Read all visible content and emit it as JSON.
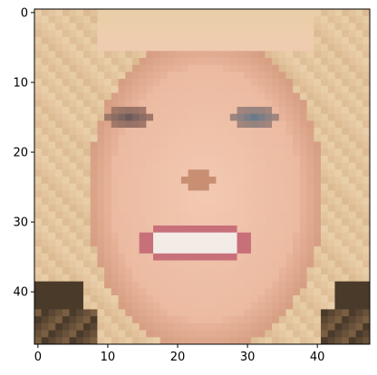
{
  "chart_data": {
    "type": "heatmap",
    "title": "",
    "xlabel": "",
    "ylabel": "",
    "image_size": [
      48,
      48
    ],
    "xlim": [
      -0.5,
      47.5
    ],
    "ylim": [
      47.5,
      -0.5
    ],
    "xticks": [
      0,
      10,
      20,
      30,
      40
    ],
    "yticks": [
      0,
      10,
      20,
      30,
      40
    ],
    "xtick_labels": [
      "0",
      "10",
      "20",
      "30",
      "40"
    ],
    "ytick_labels": [
      "0",
      "10",
      "20",
      "30",
      "40"
    ],
    "content": "pixelated grayscale-to-color close-up photo of a smiling woman's face with light blonde hair",
    "grid": false,
    "colors": {
      "skin": "#e8b49a",
      "skin_highlight": "#f3c9b2",
      "skin_shadow": "#c98f73",
      "hair": "#d8b48c",
      "hair_light": "#e9cfa9",
      "hair_dark": "#8a6a4a",
      "background_dark": "#4a3a2a",
      "eye": "#6b5a5a",
      "iris": "#6a7a8a",
      "lips": "#c8707a",
      "teeth": "#f2ebe6",
      "axis": "#000000"
    }
  }
}
